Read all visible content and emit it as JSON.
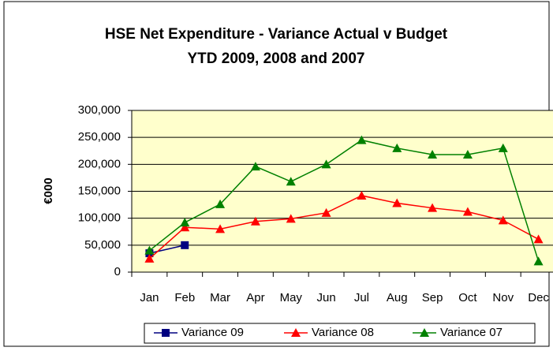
{
  "chart_data": {
    "type": "line",
    "title": "HSE Net Expenditure - Variance Actual v Budget",
    "subtitle": "YTD 2009, 2008 and 2007",
    "y_label": "€000",
    "categories": [
      "Jan",
      "Feb",
      "Mar",
      "Apr",
      "May",
      "Jun",
      "Jul",
      "Aug",
      "Sep",
      "Oct",
      "Nov",
      "Dec"
    ],
    "series": [
      {
        "name": "Variance 09",
        "color": "#000080",
        "marker": "square",
        "values": [
          35000,
          50000,
          null,
          null,
          null,
          null,
          null,
          null,
          null,
          null,
          null,
          null
        ]
      },
      {
        "name": "Variance 08",
        "color": "#ff0000",
        "marker": "triangle",
        "values": [
          25000,
          83000,
          80000,
          94000,
          99000,
          110000,
          142000,
          128000,
          119000,
          112000,
          96000,
          61000
        ]
      },
      {
        "name": "Variance 07",
        "color": "#008000",
        "marker": "triangle",
        "values": [
          40000,
          92000,
          126000,
          196000,
          168000,
          200000,
          245000,
          230000,
          218000,
          218000,
          230000,
          20000
        ]
      }
    ],
    "ylim": [
      0,
      300000
    ],
    "yticks": [
      0,
      {
        "value": 50000,
        "label": "50,000"
      },
      {
        "value": 100000,
        "label": "100,000"
      },
      {
        "value": 150000,
        "label": "150,000"
      },
      {
        "value": 200000,
        "label": "200,000"
      },
      {
        "value": 250000,
        "label": "250,000"
      },
      {
        "value": 300000,
        "label": "300,000"
      }
    ],
    "grid": true,
    "plot_background": "#ffffcc",
    "legend": "bottom"
  }
}
